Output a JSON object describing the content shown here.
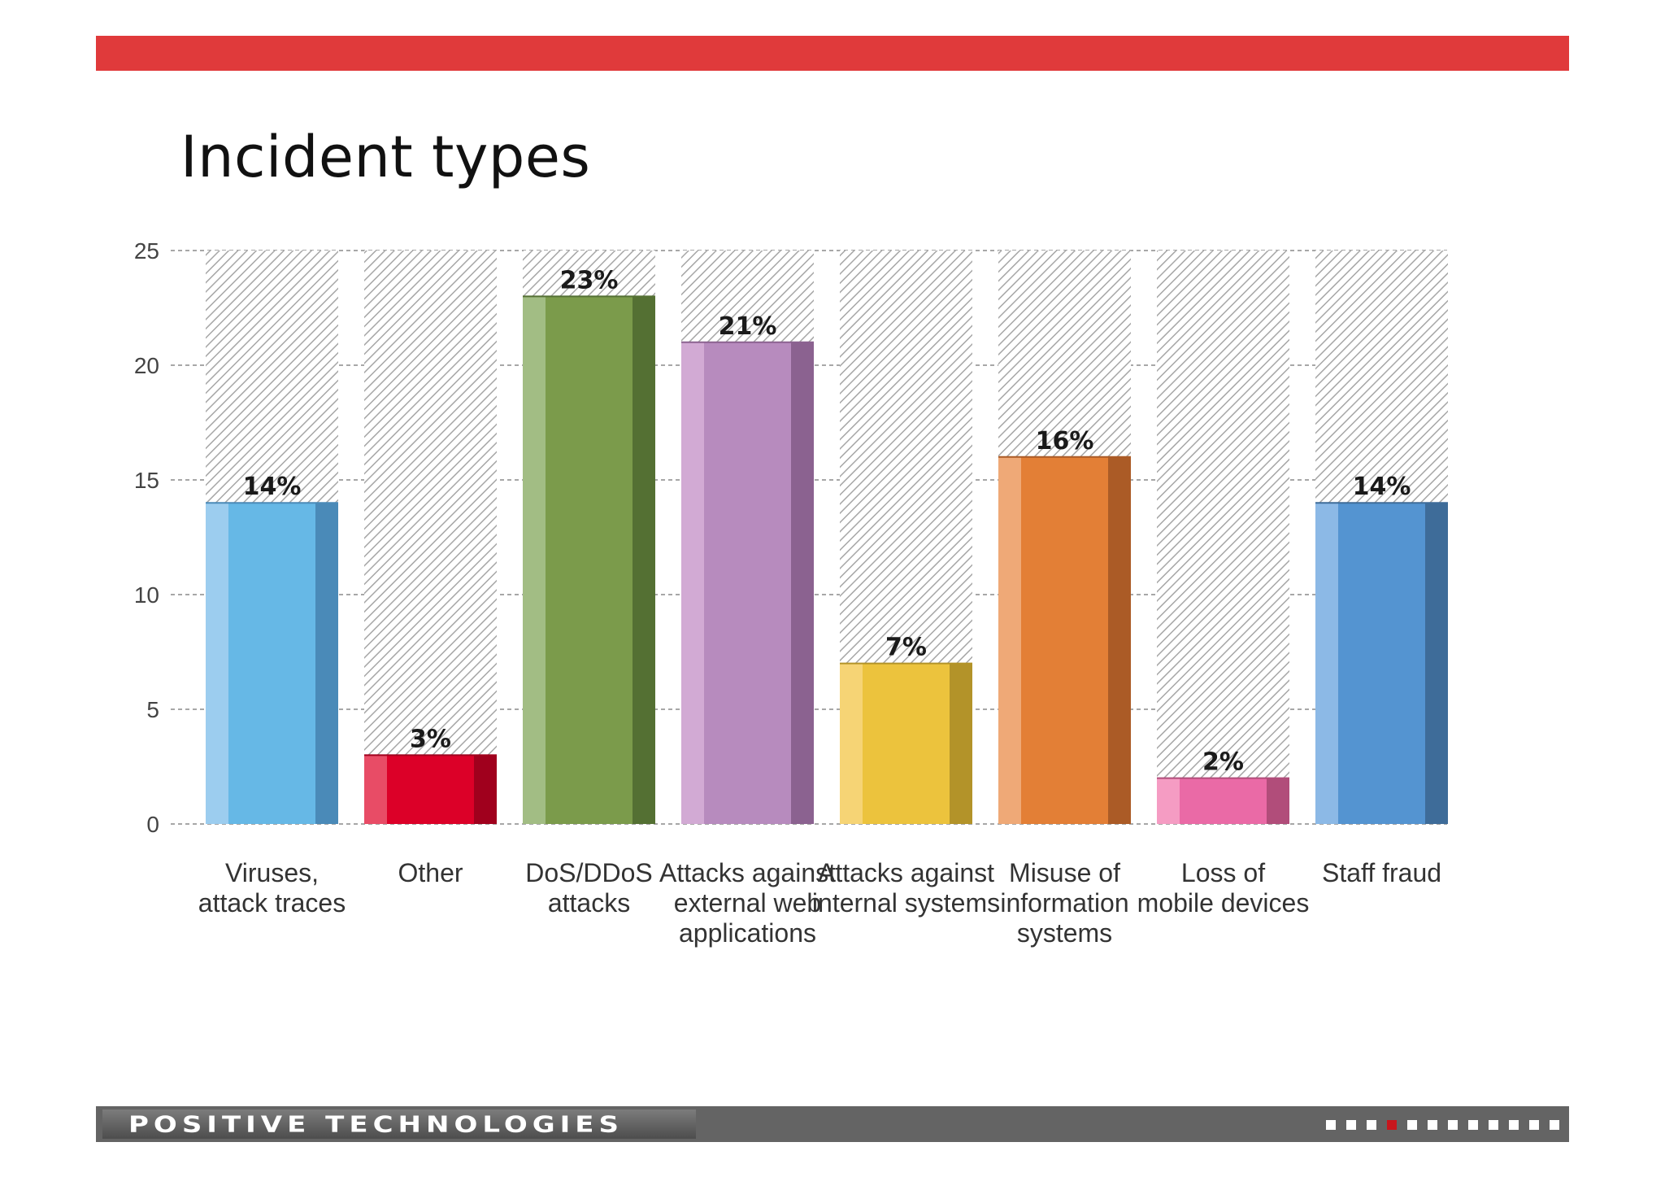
{
  "slide": {
    "title": "Incident types"
  },
  "chart_data": {
    "type": "bar",
    "title": "Incident types",
    "xlabel": "",
    "ylabel": "",
    "ylim": [
      0,
      25
    ],
    "yticks": [
      0,
      5,
      10,
      15,
      20,
      25
    ],
    "ytick_labels": [
      "0",
      "5",
      "10",
      "15",
      "20",
      "25"
    ],
    "grid": true,
    "categories": [
      [
        "Viruses,",
        "attack traces"
      ],
      [
        "Other"
      ],
      [
        "DoS/DDoS",
        "attacks"
      ],
      [
        "Attacks against",
        "external web",
        "applications"
      ],
      [
        "Attacks against",
        "internal systems"
      ],
      [
        "Misuse of",
        "information",
        "systems"
      ],
      [
        "Loss of",
        "mobile devices"
      ],
      [
        "Staff fraud"
      ]
    ],
    "values": [
      14,
      3,
      23,
      21,
      7,
      16,
      2,
      14
    ],
    "value_labels": [
      "14%",
      "3%",
      "23%",
      "21%",
      "7%",
      "16%",
      "2%",
      "14%"
    ],
    "colors": [
      {
        "light": "#9ccdef",
        "main": "#66b8e6",
        "dark": "#4a8ab8"
      },
      {
        "light": "#e84c66",
        "main": "#dc0028",
        "dark": "#a0001d"
      },
      {
        "light": "#a2bd84",
        "main": "#7b9b4b",
        "dark": "#547033"
      },
      {
        "light": "#d2aad4",
        "main": "#b78bbe",
        "dark": "#8b6290"
      },
      {
        "light": "#f6d475",
        "main": "#ecc33d",
        "dark": "#b39329"
      },
      {
        "light": "#efa977",
        "main": "#e37f36",
        "dark": "#ab5b26"
      },
      {
        "light": "#f59cc3",
        "main": "#ea6aa6",
        "dark": "#b14d7a"
      },
      {
        "light": "#8cb9e6",
        "main": "#5494d1",
        "dark": "#3e6c99"
      }
    ]
  },
  "footer": {
    "brand": "POSITIVE TECHNOLOGIES",
    "page_count": 12,
    "active_page": 4
  }
}
